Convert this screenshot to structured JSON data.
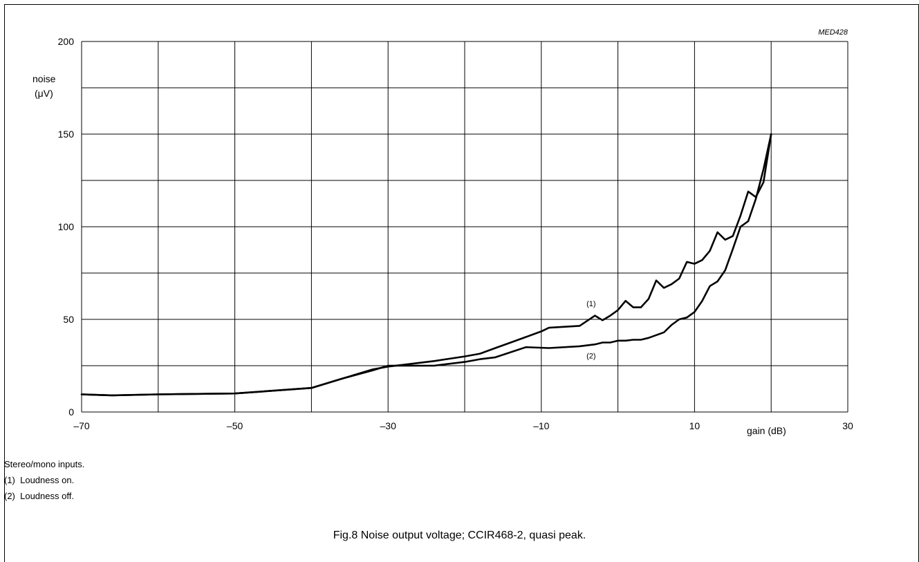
{
  "code_label": "MED428",
  "chart_data": {
    "type": "line",
    "xlabel": "gain (dB)",
    "ylabel": "noise",
    "ylabel_unit": "(μV)",
    "xlim": [
      -70,
      30
    ],
    "ylim": [
      0,
      200
    ],
    "x_ticks": [
      -70,
      -50,
      -30,
      -10,
      10,
      30
    ],
    "x_tick_labels": [
      "–70",
      "–50",
      "–30",
      "–10",
      "10",
      "30"
    ],
    "x_grid_step": 10,
    "y_ticks": [
      0,
      50,
      100,
      150,
      200
    ],
    "y_tick_labels": [
      "0",
      "50",
      "100",
      "150",
      "200"
    ],
    "y_grid_step": 25,
    "grid": true,
    "series": [
      {
        "name": "(1)",
        "label_at": [
          -3.5,
          57
        ],
        "x": [
          -70,
          -66,
          -60,
          -50,
          -40,
          -36,
          -32,
          -30,
          -28,
          -24,
          -20,
          -18,
          -16,
          -14,
          -12,
          -10,
          -9,
          -5,
          -3,
          -2,
          -1,
          0,
          1,
          2,
          3,
          4,
          5,
          6,
          7,
          8,
          9,
          10,
          11,
          12,
          13,
          14,
          15,
          16,
          17,
          18,
          19,
          20
        ],
        "y": [
          9.5,
          9,
          9.5,
          10,
          13,
          18,
          23,
          24.5,
          25.5,
          27.5,
          30,
          31.5,
          34.5,
          37.5,
          40.5,
          43.5,
          45.5,
          46.5,
          52,
          49.5,
          52,
          55,
          60,
          56.5,
          56.5,
          61,
          71,
          67,
          69,
          72,
          81,
          80,
          82,
          87,
          97,
          93,
          95,
          106,
          119,
          116,
          124,
          150
        ]
      },
      {
        "name": "(2)",
        "label_at": [
          -3.5,
          29
        ],
        "x": [
          -70,
          -66,
          -60,
          -50,
          -40,
          -36,
          -32,
          -30,
          -28,
          -24,
          -20,
          -18,
          -16,
          -12,
          -9,
          -5,
          -3,
          -2,
          -1,
          0,
          1,
          2,
          3,
          4,
          5,
          6,
          7,
          8,
          9,
          10,
          11,
          12,
          13,
          14,
          15,
          16,
          17,
          18,
          19,
          20
        ],
        "y": [
          9.5,
          9,
          9.5,
          10,
          13,
          18,
          22.5,
          25,
          25,
          25,
          27,
          28.5,
          29.5,
          35,
          34.5,
          35.5,
          36.5,
          37.5,
          37.5,
          38.5,
          38.5,
          39,
          39,
          40,
          41.5,
          43,
          47,
          50,
          51,
          54,
          60,
          68,
          70.5,
          76.5,
          88,
          100,
          103,
          115,
          131,
          150
        ]
      }
    ]
  },
  "notes": [
    "Stereo/mono inputs.",
    "(1)  Loudness on.",
    "(2)  Loudness off."
  ],
  "caption": "Fig.8  Noise output voltage; CCIR468-2, quasi peak."
}
